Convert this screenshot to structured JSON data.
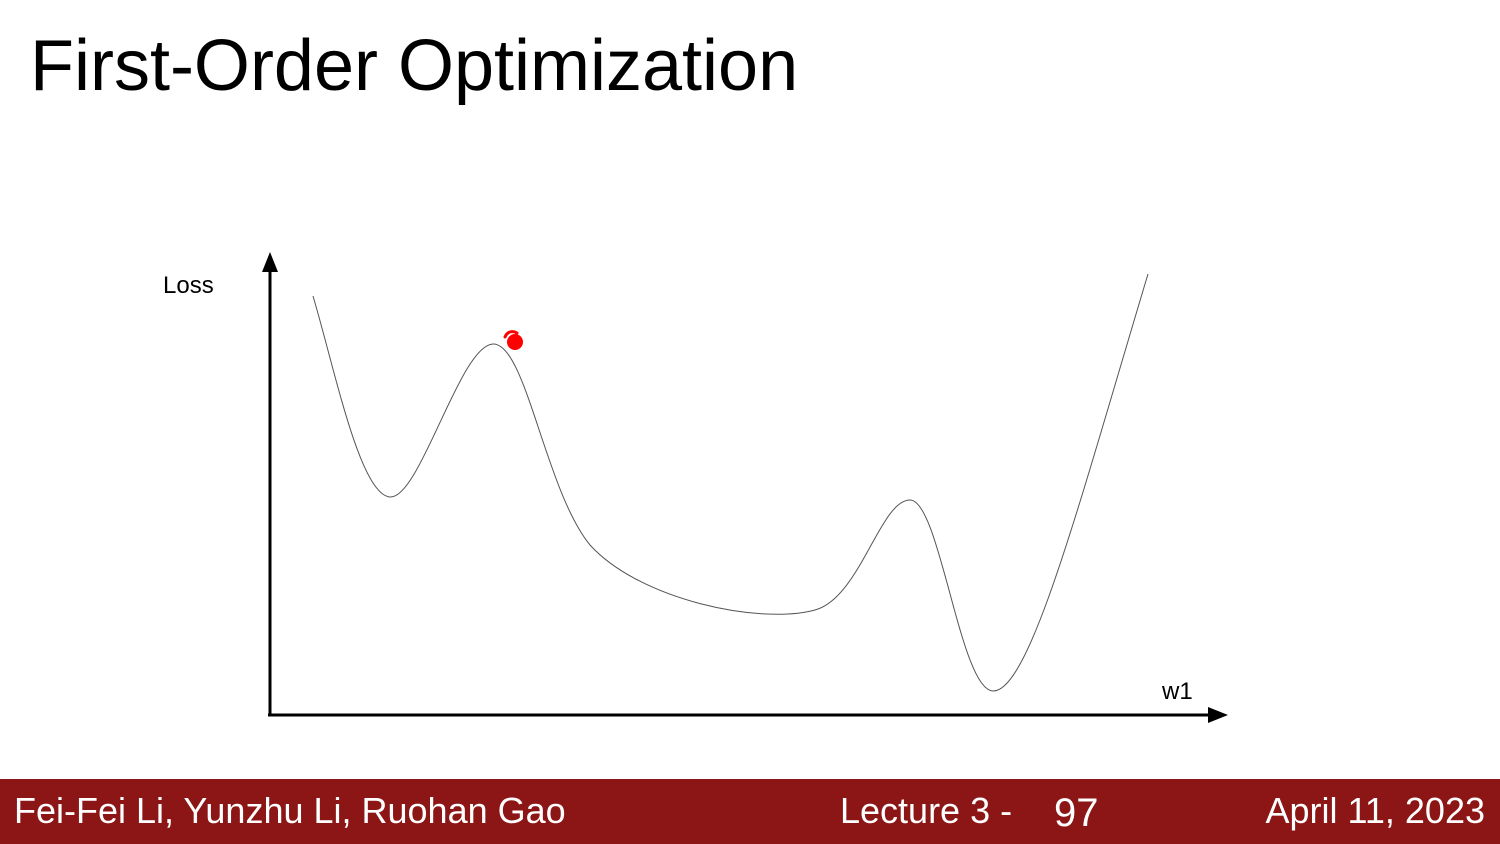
{
  "slide": {
    "title": "First-Order Optimization"
  },
  "diagram": {
    "y_axis_label": "Loss",
    "x_axis_label": "w1",
    "ball_color": "#ff0000",
    "curve_color": "#555555"
  },
  "footer": {
    "authors": "Fei-Fei Li, Yunzhu Li, Ruohan Gao",
    "lecture": "Lecture 3 -",
    "page": "97",
    "date": "April 11, 2023",
    "background_color": "#8c1515"
  }
}
